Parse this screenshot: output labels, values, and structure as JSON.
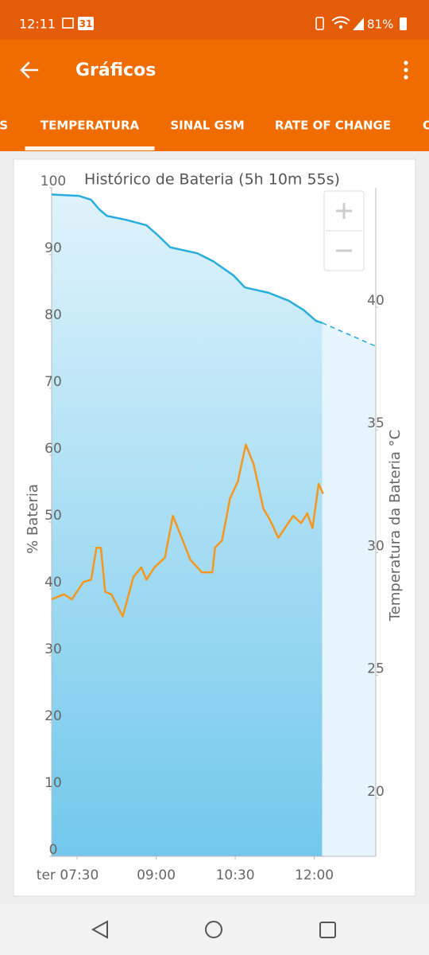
{
  "status_bar": {
    "time": "12:11",
    "calendar": "31",
    "battery": "81%"
  },
  "app_bar": {
    "title": "Gráficos"
  },
  "tabs": [
    "S",
    "TEMPERATURA",
    "SINAL GSM",
    "RATE OF CHANGE",
    "C"
  ],
  "selected_tab": 1,
  "chart_data": {
    "type": "line",
    "title": "Histórico de Bateria (5h 10m 55s)",
    "ylabel": "% Bateria",
    "y2label": "Temperatura da Bateria °C",
    "xlim": [
      "07:01",
      "13:10"
    ],
    "xticks": [
      {
        "value": "07:30",
        "label": "ter 07:30"
      },
      "09:00",
      "10:30",
      "12:00"
    ],
    "ylim": [
      0,
      100
    ],
    "yticks": [
      0,
      10,
      20,
      30,
      40,
      50,
      60,
      70,
      80,
      90,
      100
    ],
    "y2lim": [
      17.63,
      44.86
    ],
    "y2ticks": [
      20,
      25,
      30,
      35,
      40
    ],
    "series": [
      {
        "color": "#29aedb",
        "area": "#8fd3f0",
        "axis": "y",
        "x": [
          "07:01",
          "07:32",
          "07:46",
          "07:55",
          "08:04",
          "08:26",
          "08:49",
          "09:02",
          "09:16",
          "09:47",
          "10:05",
          "10:28",
          "10:41",
          "11:08",
          "11:31",
          "11:48",
          "12:02",
          "12:09"
        ],
        "values": [
          99,
          98.8,
          98.2,
          96.8,
          95.8,
          95.2,
          94.4,
          92.9,
          91.1,
          90.2,
          89.0,
          86.9,
          85.1,
          84.3,
          83.1,
          81.7,
          80.1,
          79.8
        ]
      },
      {
        "color": "#29aedb",
        "area": "#e6f5fc",
        "axis": "y",
        "style": "dashed",
        "x": [
          "12:09",
          "13:10"
        ],
        "values": [
          79.8,
          76.3
        ]
      },
      {
        "color": "#f5961e",
        "axis": "y2",
        "x": [
          "07:01",
          "07:15",
          "07:24",
          "07:37",
          "07:46",
          "07:52",
          "07:57",
          "08:02",
          "08:09",
          "08:22",
          "08:34",
          "08:43",
          "08:49",
          "08:58",
          "09:10",
          "09:19",
          "09:28",
          "09:39",
          "09:52",
          "10:04",
          "10:07",
          "10:15",
          "10:24",
          "10:33",
          "10:42",
          "10:51",
          "11:02",
          "11:10",
          "11:19",
          "11:36",
          "11:45",
          "11:52",
          "11:58",
          "12:05",
          "12:10"
        ],
        "values": [
          28.1,
          28.3,
          28.1,
          28.8,
          28.9,
          30.2,
          30.2,
          28.4,
          28.3,
          27.4,
          29.0,
          29.4,
          28.9,
          29.4,
          29.8,
          31.5,
          30.7,
          29.7,
          29.2,
          29.2,
          30.2,
          30.5,
          32.2,
          32.9,
          34.4,
          33.6,
          31.8,
          31.3,
          30.6,
          31.5,
          31.2,
          31.6,
          31.0,
          32.8,
          32.4
        ]
      }
    ]
  }
}
